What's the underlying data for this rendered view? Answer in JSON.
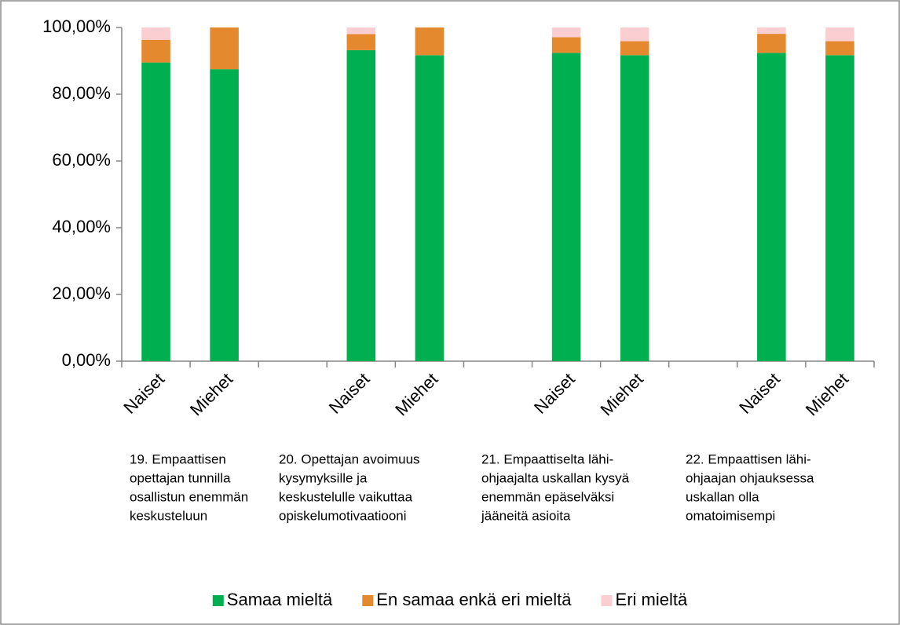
{
  "chart_data": {
    "type": "stacked_bar",
    "categories": [
      "Naiset",
      "Miehet",
      null,
      "Naiset",
      "Miehet",
      null,
      "Naiset",
      "Miehet",
      null,
      "Naiset",
      "Miehet"
    ],
    "group_labels": [
      [
        "19. Empaattisen",
        "opettajan tunnilla",
        "osallistun enemmän",
        "keskusteluun"
      ],
      [
        "20. Opettajan avoimuus",
        "kysymyksille ja",
        "keskustelulle vaikuttaa",
        "opiskelumotivaatiooni"
      ],
      [
        "21. Empaattiselta lähi-",
        "ohjaajalta uskallan kysyä",
        "enemmän epäselväksi",
        "jääneitä asioita"
      ],
      [
        "22. Empaattisen lähi-",
        "ohjaajan ohjauksessa",
        "uskallan olla",
        "omatoimisempi"
      ]
    ],
    "series": [
      {
        "name": "Samaa mieltä",
        "color": "#00b050",
        "values": [
          89.5,
          87.5,
          null,
          93.2,
          91.7,
          null,
          92.4,
          91.7,
          null,
          92.4,
          91.7
        ]
      },
      {
        "name": "En samaa enkä eri mieltä",
        "color": "#e5892f",
        "values": [
          6.8,
          12.5,
          null,
          4.8,
          8.3,
          null,
          4.7,
          4.2,
          null,
          5.7,
          4.2
        ]
      },
      {
        "name": "Eri mieltä",
        "color": "#fbcfd1",
        "values": [
          3.7,
          0,
          null,
          2.0,
          0,
          null,
          2.9,
          4.1,
          null,
          1.9,
          4.1
        ]
      }
    ],
    "ylim": [
      0,
      100
    ],
    "yticks": [
      {
        "value": 0,
        "label": "0,00%"
      },
      {
        "value": 20,
        "label": "20,00%"
      },
      {
        "value": 40,
        "label": "40,00%"
      },
      {
        "value": 60,
        "label": "60,00%"
      },
      {
        "value": 80,
        "label": "80,00%"
      },
      {
        "value": 100,
        "label": "100,00%"
      }
    ],
    "grid": false,
    "legend": "bottom"
  }
}
